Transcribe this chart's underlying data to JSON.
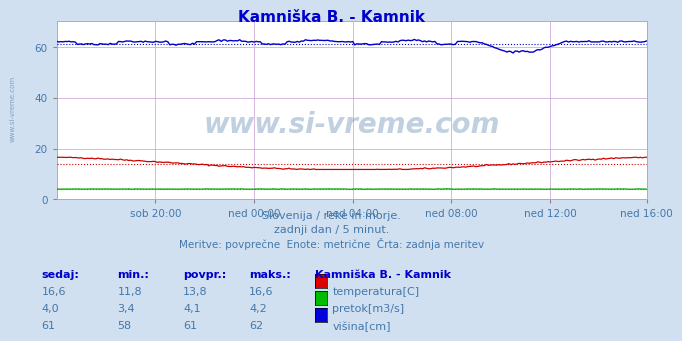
{
  "title": "Kamniška B. - Kamnik",
  "title_color": "#0000cc",
  "bg_color": "#d0e0f0",
  "plot_bg_color": "#ffffff",
  "xlabel_ticks": [
    "sob 20:00",
    "ned 00:00",
    "ned 04:00",
    "ned 08:00",
    "ned 12:00",
    "ned 16:00"
  ],
  "ylabel_ticks": [
    0,
    20,
    40,
    60
  ],
  "ylim": [
    0,
    70
  ],
  "xlim": [
    0,
    287
  ],
  "grid_color_h": "#ffcccc",
  "grid_color_v": "#ccccff",
  "watermark": "www.si-vreme.com",
  "watermark_color": "#336699",
  "subtitle1": "Slovenija / reke in morje.",
  "subtitle2": "zadnji dan / 5 minut.",
  "subtitle3": "Meritve: povprečne  Enote: metrične  Črta: zadnja meritev",
  "subtitle_color": "#4477aa",
  "legend_title": "Kamniška B. - Kamnik",
  "legend_items": [
    {
      "label": "temperatura[C]",
      "color": "#dd0000"
    },
    {
      "label": "pretok[m3/s]",
      "color": "#00bb00"
    },
    {
      "label": "višina[cm]",
      "color": "#0000dd"
    }
  ],
  "table_headers": [
    "sedaj:",
    "min.:",
    "povpr.:",
    "maks.:"
  ],
  "table_data": [
    [
      "16,6",
      "11,8",
      "13,8",
      "16,6"
    ],
    [
      "4,0",
      "3,4",
      "4,1",
      "4,2"
    ],
    [
      "61",
      "58",
      "61",
      "62"
    ]
  ],
  "temp_avg": 13.8,
  "temp_min": 11.8,
  "temp_max": 16.6,
  "temp_last": 16.6,
  "flow_avg": 4.1,
  "flow_min": 3.4,
  "flow_max": 4.2,
  "flow_last": 4.0,
  "height_avg": 61,
  "height_min": 58,
  "height_max": 62,
  "height_last": 61
}
